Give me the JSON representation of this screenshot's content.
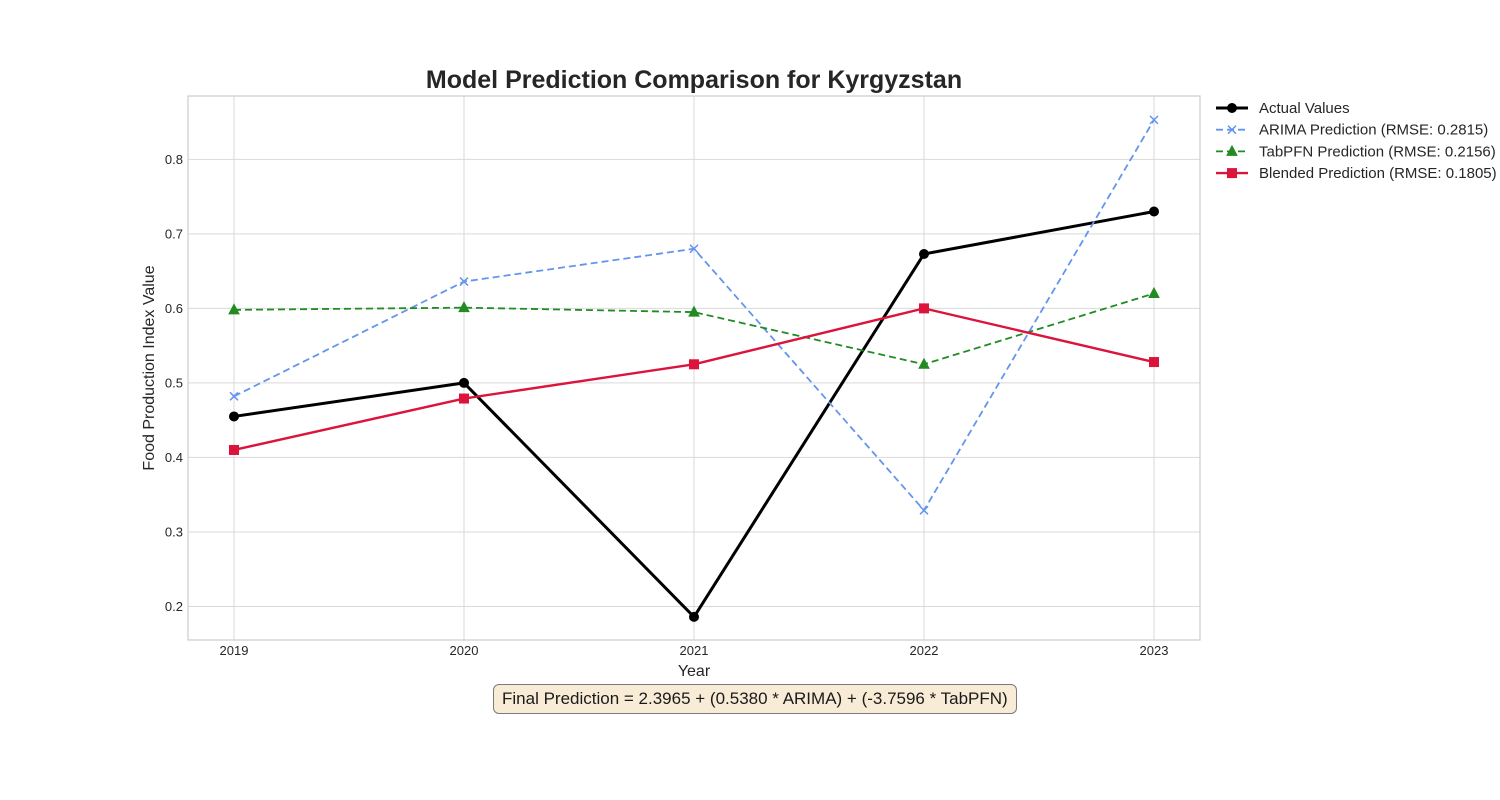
{
  "chart_data": {
    "type": "line",
    "title": "Model Prediction Comparison for Kyrgyzstan",
    "xlabel": "Year",
    "ylabel": "Food Production Index Value",
    "x": [
      "2019",
      "2020",
      "2021",
      "2022",
      "2023"
    ],
    "yticks": [
      "0.2",
      "0.3",
      "0.4",
      "0.5",
      "0.6",
      "0.7",
      "0.8"
    ],
    "ylim": [
      0.155,
      0.885
    ],
    "grid": true,
    "legend_position": "outside-top-right",
    "series": [
      {
        "name": "Actual Values",
        "values": [
          0.455,
          0.5,
          0.186,
          0.673,
          0.73
        ],
        "color": "#000000",
        "style": "solid",
        "marker": "circle"
      },
      {
        "name": "ARIMA Prediction (RMSE: 0.2815)",
        "values": [
          0.482,
          0.636,
          0.68,
          0.329,
          0.853
        ],
        "color": "#6495ed",
        "style": "dashed",
        "marker": "x"
      },
      {
        "name": "TabPFN Prediction (RMSE: 0.2156)",
        "values": [
          0.598,
          0.601,
          0.595,
          0.525,
          0.62
        ],
        "color": "#228b22",
        "style": "dashed",
        "marker": "triangle"
      },
      {
        "name": "Blended Prediction (RMSE: 0.1805)",
        "values": [
          0.41,
          0.479,
          0.525,
          0.6,
          0.528
        ],
        "color": "#dc143c",
        "style": "solid",
        "marker": "square"
      }
    ]
  },
  "annotation": {
    "text": "Final Prediction = 2.3965 + (0.5380 * ARIMA) + (-3.7596 * TabPFN)"
  }
}
